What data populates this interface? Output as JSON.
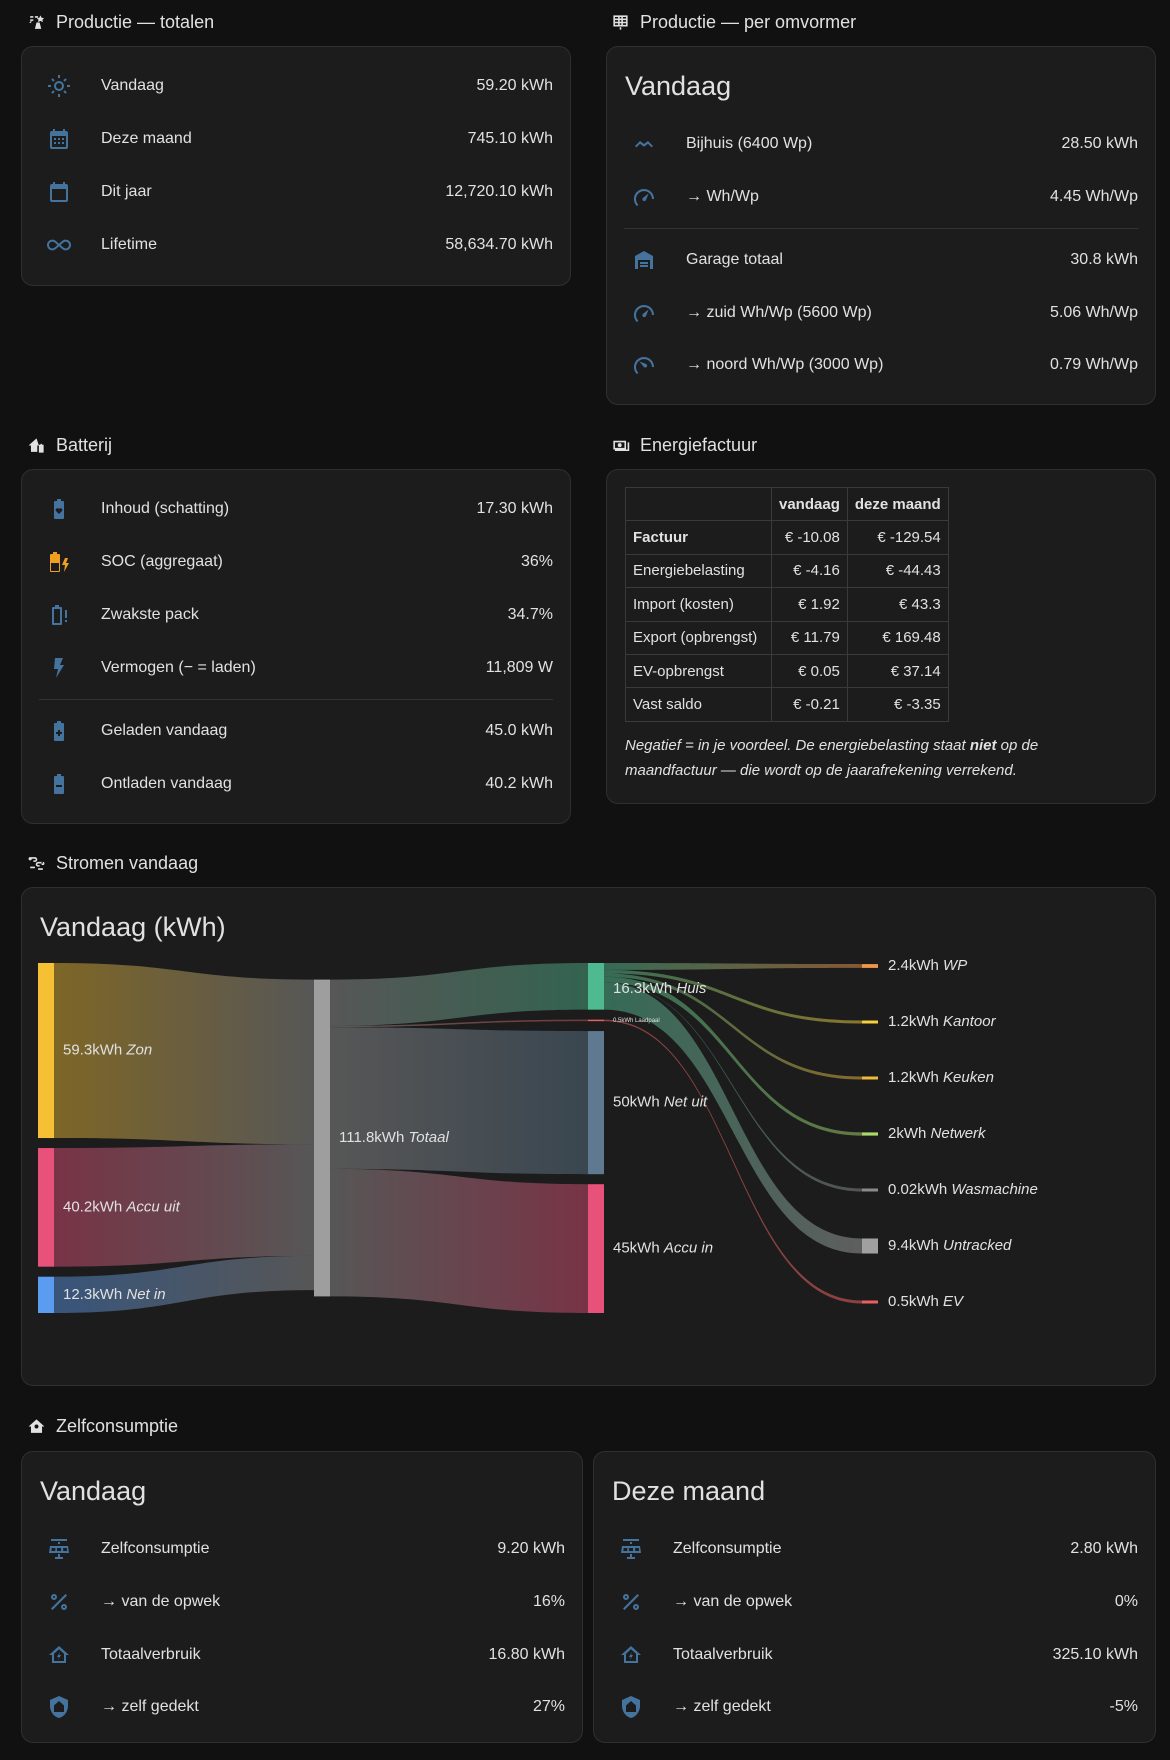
{
  "sections": {
    "productie_totalen": "Productie — totalen",
    "productie_omvormer": "Productie — per omvormer",
    "batterij": "Batterij",
    "energiefactuur": "Energiefactuur",
    "stromen": "Stromen vandaag",
    "zelfconsumptie": "Zelfconsumptie"
  },
  "totalen": [
    {
      "icon": "sun-icon",
      "label": "Vandaag",
      "value": "59.20 kWh"
    },
    {
      "icon": "calendar-month-icon",
      "label": "Deze maand",
      "value": "745.10 kWh"
    },
    {
      "icon": "calendar-icon",
      "label": "Dit jaar",
      "value": "12,720.10 kWh"
    },
    {
      "icon": "infinity-icon",
      "label": "Lifetime",
      "value": "58,634.70 kWh"
    }
  ],
  "omvormer": {
    "heading": "Vandaag",
    "rows": [
      {
        "icon": "roof-icon",
        "label": "Bijhuis (6400 Wp)",
        "value": "28.50 kWh"
      },
      {
        "icon": "gauge-icon",
        "label": "→ Wh/Wp",
        "value": "4.45 Wh/Wp"
      },
      {
        "icon": "garage-icon",
        "label": "Garage totaal",
        "value": "30.8 kWh"
      },
      {
        "icon": "gauge-icon",
        "label": "→ zuid Wh/Wp (5600 Wp)",
        "value": "5.06 Wh/Wp"
      },
      {
        "icon": "gauge-low-icon",
        "label": "→ noord Wh/Wp (3000 Wp)",
        "value": "0.79 Wh/Wp"
      }
    ]
  },
  "batterij": [
    {
      "icon": "battery-heart-icon",
      "label": "Inhoud (schatting)",
      "value": "17.30 kWh"
    },
    {
      "icon": "battery-charging-icon",
      "label": "SOC (aggregaat)",
      "value": "36%"
    },
    {
      "icon": "battery-alert-icon",
      "label": "Zwakste pack",
      "value": "34.7%"
    },
    {
      "icon": "lightning-icon",
      "label": "Vermogen (− = laden)",
      "value": "11,809 W"
    },
    {
      "icon": "battery-plus-icon",
      "label": "Geladen vandaag",
      "value": "45.0 kWh"
    },
    {
      "icon": "battery-minus-icon",
      "label": "Ontladen vandaag",
      "value": "40.2 kWh"
    }
  ],
  "factuur": {
    "headers": [
      "",
      "vandaag",
      "deze maand"
    ],
    "rows": [
      {
        "label": "Factuur",
        "vandaag": "€ -10.08",
        "maand": "€ -129.54"
      },
      {
        "label": "Energiebelasting",
        "vandaag": "€ -4.16",
        "maand": "€ -44.43"
      },
      {
        "label": "Import (kosten)",
        "vandaag": "€ 1.92",
        "maand": "€ 43.3"
      },
      {
        "label": "Export (opbrengst)",
        "vandaag": "€ 11.79",
        "maand": "€ 169.48"
      },
      {
        "label": "EV-opbrengst",
        "vandaag": "€ 0.05",
        "maand": "€ 37.14"
      },
      {
        "label": "Vast saldo",
        "vandaag": "€ -0.21",
        "maand": "€ -3.35"
      }
    ],
    "note_1": "Negatief = in je voordeel. De energiebelasting staat ",
    "note_bold": "niet",
    "note_2": " op de maandfactuur — die wordt op de jaarafrekening verrekend."
  },
  "sankey": {
    "heading": "Vandaag (kWh)",
    "unit": "kWh",
    "sources": [
      {
        "name": "Zon",
        "value": 59.3,
        "color": "#f5c033"
      },
      {
        "name": "Accu uit",
        "value": 40.2,
        "color": "#e8517a"
      },
      {
        "name": "Net in",
        "value": 12.3,
        "color": "#5b9bf0"
      }
    ],
    "total": {
      "name": "Totaal",
      "value": 111.8,
      "color": "#9e9e9e"
    },
    "sinks": [
      {
        "name": "Huis",
        "value": 16.3,
        "color": "#4fba90"
      },
      {
        "name": "Laadpaal",
        "value": 0.5,
        "color": "#e86060",
        "label": "0.5kWh Laadpaal"
      },
      {
        "name": "Net uit",
        "value": 50,
        "color": "#5f7a90"
      },
      {
        "name": "Accu in",
        "value": 45,
        "color": "#e8517a"
      }
    ],
    "consumers": [
      {
        "name": "WP",
        "value": 2.4,
        "color": "#f0954c"
      },
      {
        "name": "Kantoor",
        "value": 1.2,
        "color": "#f5d03c"
      },
      {
        "name": "Keuken",
        "value": 1.2,
        "color": "#f0b83c"
      },
      {
        "name": "Netwerk",
        "value": 2,
        "color": "#a9d86b"
      },
      {
        "name": "Wasmachine",
        "value": 0.02,
        "color": "#8a8a8a"
      },
      {
        "name": "Untracked",
        "value": 9.4,
        "color": "#a0a0a0"
      },
      {
        "name": "EV",
        "value": 0.5,
        "color": "#e86060"
      }
    ]
  },
  "zelf_vandaag": {
    "heading": "Vandaag",
    "rows": [
      {
        "icon": "solar-panel-icon",
        "label": "Zelfconsumptie",
        "value": "9.20 kWh"
      },
      {
        "icon": "percent-icon",
        "label": "→ van de opwek",
        "value": "16%"
      },
      {
        "icon": "home-lightning-icon",
        "label": "Totaalverbruik",
        "value": "16.80 kWh"
      },
      {
        "icon": "shield-home-icon",
        "label": "→ zelf gedekt",
        "value": "27%"
      }
    ]
  },
  "zelf_maand": {
    "heading": "Deze maand",
    "rows": [
      {
        "icon": "solar-panel-icon",
        "label": "Zelfconsumptie",
        "value": "2.80 kWh"
      },
      {
        "icon": "percent-icon",
        "label": "→ van de opwek",
        "value": "0%"
      },
      {
        "icon": "home-lightning-icon",
        "label": "Totaalverbruik",
        "value": "325.10 kWh"
      },
      {
        "icon": "shield-home-icon",
        "label": "→ zelf gedekt",
        "value": "-5%"
      }
    ]
  }
}
